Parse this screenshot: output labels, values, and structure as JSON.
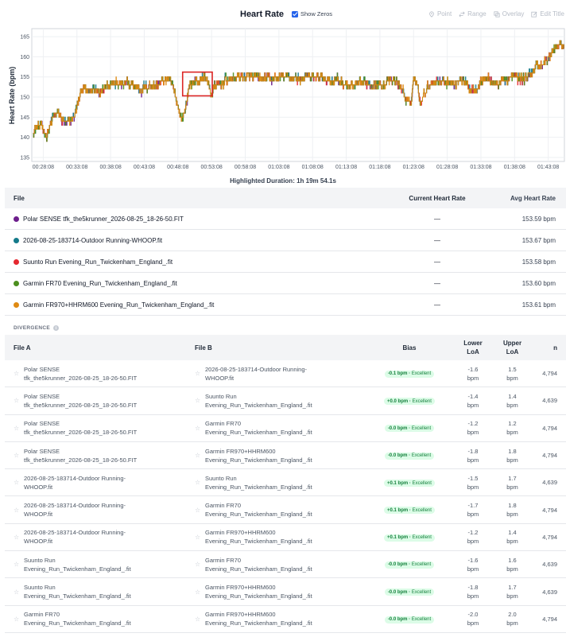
{
  "header": {
    "title": "Heart Rate",
    "show_zeros_label": "Show Zeros",
    "tools": [
      {
        "label": "Point",
        "icon": "pin-icon"
      },
      {
        "label": "Range",
        "icon": "range-icon"
      },
      {
        "label": "Overlay",
        "icon": "overlay-icon"
      },
      {
        "label": "Edit Title",
        "icon": "edit-icon"
      }
    ]
  },
  "chart_data": {
    "type": "line",
    "title": "",
    "xlabel": "",
    "ylabel": "Heart Rate (bpm)",
    "ylim": [
      134,
      167
    ],
    "yticks": [
      135,
      140,
      145,
      150,
      155,
      160,
      165
    ],
    "x_tick_labels": [
      "00:28:08",
      "00:33:08",
      "00:38:08",
      "00:43:08",
      "00:48:08",
      "00:53:08",
      "00:58:08",
      "01:03:08",
      "01:08:08",
      "01:13:08",
      "01:18:08",
      "01:23:08",
      "01:28:08",
      "01:33:08",
      "01:38:08",
      "01:43:08"
    ],
    "x_minutes": [
      28,
      33,
      38,
      43,
      48,
      53,
      58,
      63,
      68,
      73,
      78,
      83,
      88,
      93,
      98,
      103
    ],
    "xlim_minutes": [
      26.3,
      105.4
    ],
    "highlight": {
      "x0_minutes": 48.7,
      "x1_minutes": 53.1,
      "y0": 150.3,
      "y1": 156.2
    },
    "highlight_caption": "Highlighted Duration: 1h 19m 54.1s",
    "trend": {
      "x_minutes": [
        26.5,
        27.5,
        28.5,
        29.5,
        30.0,
        31.0,
        31.5,
        32.5,
        33.0,
        33.8,
        34.5,
        35.5,
        36.5,
        37.0,
        38.0,
        39.5,
        41.0,
        42.5,
        44.0,
        45.0,
        45.7,
        46.5,
        47.2,
        47.8,
        48.5,
        49.0,
        49.5,
        50.0,
        51.0,
        52.0,
        52.5,
        53.0,
        53.5,
        54.0,
        55.0,
        56.0,
        57.0,
        58.0,
        60.0,
        62.0,
        64.0,
        66.0,
        68.0,
        70.0,
        72.0,
        73.0,
        74.0,
        76.0,
        78.0,
        80.0,
        81.0,
        82.0,
        82.5,
        83.0,
        83.5,
        84.0,
        85.0,
        86.0,
        88.0,
        89.0,
        90.0,
        91.0,
        92.0,
        93.0,
        94.0,
        95.0,
        96.0,
        97.0,
        98.0,
        99.0,
        100.0,
        101.0,
        102.0,
        103.0,
        104.0,
        105.0
      ],
      "values": [
        141.5,
        143,
        140.5,
        145,
        146,
        144,
        143,
        145,
        147.5,
        152.5,
        151,
        152,
        151.5,
        153,
        153.5,
        153,
        153,
        152,
        153,
        153,
        154,
        154.5,
        152.5,
        149,
        144.5,
        146,
        151.5,
        153.5,
        154,
        155,
        153,
        150.5,
        153,
        152.5,
        154,
        154.5,
        155,
        155,
        154.5,
        154.5,
        155,
        154.5,
        155,
        154.5,
        154,
        153,
        152.5,
        153.5,
        153,
        154,
        153,
        149,
        147.5,
        155,
        153,
        149,
        152.5,
        154,
        154,
        153,
        155,
        152.5,
        152,
        154,
        155,
        153,
        154,
        154.5,
        155,
        154.5,
        155,
        157.5,
        158,
        159.5,
        162,
        163
      ]
    },
    "series": [
      {
        "name": "Polar SENSE tfk_the5krunner_2026-08-25_18-26-50.FIT",
        "color": "#6d1e8c",
        "offset": 0.0
      },
      {
        "name": "2026-08-25-183714-Outdoor Running-WHOOP.fit",
        "color": "#147a8a",
        "offset": 0.1
      },
      {
        "name": "Suunto Run Evening_Run_Twickenham_England_.fit",
        "color": "#e5282f",
        "offset": 0.0
      },
      {
        "name": "Garmin FR70 Evening_Run_Twickenham_England_.fit",
        "color": "#4c8f1f",
        "offset": 0.0
      },
      {
        "name": "Garmin FR970+HHRM600 Evening_Run_Twickenham_England_.fit",
        "color": "#df8a13",
        "offset": 0.0
      }
    ]
  },
  "files_table": {
    "headers": {
      "file": "File",
      "current": "Current Heart Rate",
      "avg": "Avg Heart Rate"
    },
    "rows": [
      {
        "color": "#6d1e8c",
        "name": "Polar SENSE tfk_the5krunner_2026-08-25_18-26-50.FIT",
        "current": "—",
        "avg": "153.59 bpm"
      },
      {
        "color": "#147a8a",
        "name": "2026-08-25-183714-Outdoor Running-WHOOP.fit",
        "current": "—",
        "avg": "153.67 bpm"
      },
      {
        "color": "#e5282f",
        "name": "Suunto Run Evening_Run_Twickenham_England_.fit",
        "current": "—",
        "avg": "153.58 bpm"
      },
      {
        "color": "#4c8f1f",
        "name": "Garmin FR70 Evening_Run_Twickenham_England_.fit",
        "current": "—",
        "avg": "153.60 bpm"
      },
      {
        "color": "#df8a13",
        "name": "Garmin FR970+HHRM600 Evening_Run_Twickenham_England_.fit",
        "current": "—",
        "avg": "153.61 bpm"
      }
    ]
  },
  "divergence": {
    "label": "DIVERGENCE",
    "headers": {
      "file_a": "File A",
      "file_b": "File B",
      "bias": "Bias",
      "lower1": "Lower",
      "lower2": "LoA",
      "upper1": "Upper",
      "upper2": "LoA",
      "n": "n"
    },
    "rows": [
      {
        "a1": "Polar SENSE",
        "a2": "tfk_the5krunner_2026-08-25_18-26-50.FIT",
        "b1": "2026-08-25-183714-Outdoor Running-",
        "b2": "WHOOP.fit",
        "bias": "-0.1 bpm",
        "level": "Excellent",
        "lower": "-1.6",
        "upper": "1.5",
        "unit": "bpm",
        "n": "4,794"
      },
      {
        "a1": "Polar SENSE",
        "a2": "tfk_the5krunner_2026-08-25_18-26-50.FIT",
        "b1": "Suunto Run",
        "b2": "Evening_Run_Twickenham_England_.fit",
        "bias": "+0.0 bpm",
        "level": "Excellent",
        "lower": "-1.4",
        "upper": "1.4",
        "unit": "bpm",
        "n": "4,639"
      },
      {
        "a1": "Polar SENSE",
        "a2": "tfk_the5krunner_2026-08-25_18-26-50.FIT",
        "b1": "Garmin FR70",
        "b2": "Evening_Run_Twickenham_England_.fit",
        "bias": "-0.0 bpm",
        "level": "Excellent",
        "lower": "-1.2",
        "upper": "1.2",
        "unit": "bpm",
        "n": "4,794"
      },
      {
        "a1": "Polar SENSE",
        "a2": "tfk_the5krunner_2026-08-25_18-26-50.FIT",
        "b1": "Garmin FR970+HHRM600",
        "b2": "Evening_Run_Twickenham_England_.fit",
        "bias": "-0.0 bpm",
        "level": "Excellent",
        "lower": "-1.8",
        "upper": "1.8",
        "unit": "bpm",
        "n": "4,794"
      },
      {
        "a1": "2026-08-25-183714-Outdoor Running-",
        "a2": "WHOOP.fit",
        "b1": "Suunto Run",
        "b2": "Evening_Run_Twickenham_England_.fit",
        "bias": "+0.1 bpm",
        "level": "Excellent",
        "lower": "-1.5",
        "upper": "1.7",
        "unit": "bpm",
        "n": "4,639"
      },
      {
        "a1": "2026-08-25-183714-Outdoor Running-",
        "a2": "WHOOP.fit",
        "b1": "Garmin FR70",
        "b2": "Evening_Run_Twickenham_England_.fit",
        "bias": "+0.1 bpm",
        "level": "Excellent",
        "lower": "-1.7",
        "upper": "1.8",
        "unit": "bpm",
        "n": "4,794"
      },
      {
        "a1": "2026-08-25-183714-Outdoor Running-",
        "a2": "WHOOP.fit",
        "b1": "Garmin FR970+HHRM600",
        "b2": "Evening_Run_Twickenham_England_.fit",
        "bias": "+0.1 bpm",
        "level": "Excellent",
        "lower": "-1.2",
        "upper": "1.4",
        "unit": "bpm",
        "n": "4,794"
      },
      {
        "a1": "Suunto Run",
        "a2": "Evening_Run_Twickenham_England_.fit",
        "b1": "Garmin FR70",
        "b2": "Evening_Run_Twickenham_England_.fit",
        "bias": "-0.0 bpm",
        "level": "Excellent",
        "lower": "-1.6",
        "upper": "1.6",
        "unit": "bpm",
        "n": "4,639"
      },
      {
        "a1": "Suunto Run",
        "a2": "Evening_Run_Twickenham_England_.fit",
        "b1": "Garmin FR970+HHRM600",
        "b2": "Evening_Run_Twickenham_England_.fit",
        "bias": "-0.0 bpm",
        "level": "Excellent",
        "lower": "-1.8",
        "upper": "1.7",
        "unit": "bpm",
        "n": "4,639"
      },
      {
        "a1": "Garmin FR70",
        "a2": "Evening_Run_Twickenham_England_.fit",
        "b1": "Garmin FR970+HHRM600",
        "b2": "Evening_Run_Twickenham_England_.fit",
        "bias": "-0.0 bpm",
        "level": "Excellent",
        "lower": "-2.0",
        "upper": "2.0",
        "unit": "bpm",
        "n": "4,794"
      }
    ]
  }
}
